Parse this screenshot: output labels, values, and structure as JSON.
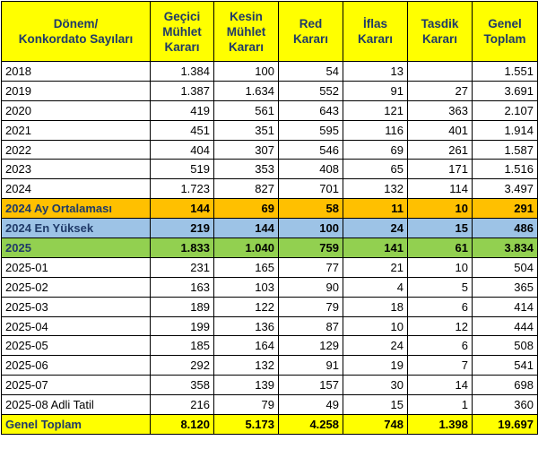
{
  "table": {
    "headers": [
      [
        "Dönem/",
        "Konkordato Sayıları"
      ],
      [
        "Geçici",
        "Mühlet",
        "Kararı"
      ],
      [
        "Kesin",
        "Mühlet",
        "Kararı"
      ],
      [
        "Red",
        "Kararı"
      ],
      [
        "İflas",
        "Kararı"
      ],
      [
        "Tasdik",
        "Kararı"
      ],
      [
        "Genel",
        "Toplam"
      ]
    ],
    "rows": [
      {
        "label": "2018",
        "style": "plain",
        "values": [
          "1.384",
          "100",
          "54",
          "13",
          "",
          "1.551"
        ]
      },
      {
        "label": "2019",
        "style": "plain",
        "values": [
          "1.387",
          "1.634",
          "552",
          "91",
          "27",
          "3.691"
        ]
      },
      {
        "label": "2020",
        "style": "plain",
        "values": [
          "419",
          "561",
          "643",
          "121",
          "363",
          "2.107"
        ]
      },
      {
        "label": "2021",
        "style": "plain",
        "values": [
          "451",
          "351",
          "595",
          "116",
          "401",
          "1.914"
        ]
      },
      {
        "label": "2022",
        "style": "plain",
        "values": [
          "404",
          "307",
          "546",
          "69",
          "261",
          "1.587"
        ]
      },
      {
        "label": "2023",
        "style": "plain",
        "values": [
          "519",
          "353",
          "408",
          "65",
          "171",
          "1.516"
        ]
      },
      {
        "label": "2024",
        "style": "plain",
        "values": [
          "1.723",
          "827",
          "701",
          "132",
          "114",
          "3.497"
        ]
      },
      {
        "label": "2024 Ay Ortalaması",
        "style": "avg",
        "values": [
          "144",
          "69",
          "58",
          "11",
          "10",
          "291"
        ]
      },
      {
        "label": "2024 En Yüksek",
        "style": "max",
        "values": [
          "219",
          "144",
          "100",
          "24",
          "15",
          "486"
        ]
      },
      {
        "label": "2025",
        "style": "y2025",
        "values": [
          "1.833",
          "1.040",
          "759",
          "141",
          "61",
          "3.834"
        ]
      },
      {
        "label": "2025-01",
        "style": "plain",
        "values": [
          "231",
          "165",
          "77",
          "21",
          "10",
          "504"
        ]
      },
      {
        "label": "2025-02",
        "style": "plain",
        "values": [
          "163",
          "103",
          "90",
          "4",
          "5",
          "365"
        ]
      },
      {
        "label": "2025-03",
        "style": "plain",
        "values": [
          "189",
          "122",
          "79",
          "18",
          "6",
          "414"
        ]
      },
      {
        "label": "2025-04",
        "style": "plain",
        "values": [
          "199",
          "136",
          "87",
          "10",
          "12",
          "444"
        ]
      },
      {
        "label": "2025-05",
        "style": "plain",
        "values": [
          "185",
          "164",
          "129",
          "24",
          "6",
          "508"
        ]
      },
      {
        "label": "2025-06",
        "style": "plain",
        "values": [
          "292",
          "132",
          "91",
          "19",
          "7",
          "541"
        ]
      },
      {
        "label": "2025-07",
        "style": "plain",
        "values": [
          "358",
          "139",
          "157",
          "30",
          "14",
          "698"
        ]
      },
      {
        "label": "2025-08 Adli Tatil",
        "style": "plain",
        "values": [
          "216",
          "79",
          "49",
          "15",
          "1",
          "360"
        ]
      },
      {
        "label": "Genel Toplam",
        "style": "total",
        "values": [
          "8.120",
          "5.173",
          "4.258",
          "748",
          "1.398",
          "19.697"
        ]
      }
    ]
  }
}
